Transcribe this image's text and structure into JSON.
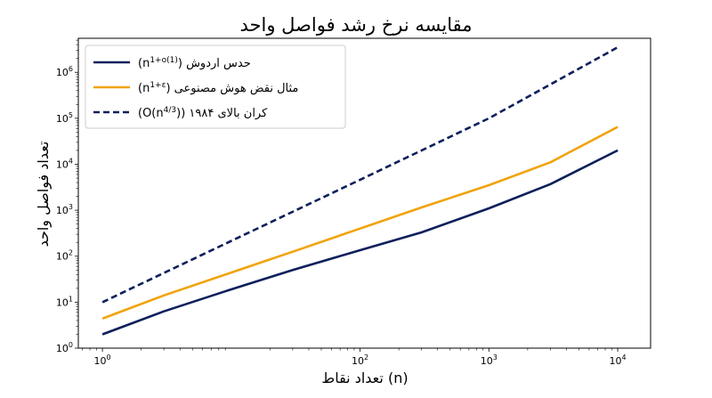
{
  "chart_data": {
    "type": "line",
    "title": "مقایسه نرخ رشد فواصل واحد",
    "xlabel": "تعداد نقاط (n)",
    "ylabel": "تعداد فواصل واحد",
    "xscale": "log",
    "yscale": "log",
    "xlim": [
      0.65,
      18000
    ],
    "ylim": [
      1,
      5500000
    ],
    "x_ticks": [
      {
        "value": 1,
        "label": "10",
        "exp": "0"
      },
      {
        "value": 100,
        "label": "10",
        "exp": "2"
      },
      {
        "value": 1000,
        "label": "10",
        "exp": "3"
      },
      {
        "value": 10000,
        "label": "10",
        "exp": "4"
      }
    ],
    "y_ticks": [
      {
        "value": 1,
        "label": "10",
        "exp": "0"
      },
      {
        "value": 10,
        "label": "10",
        "exp": "1"
      },
      {
        "value": 100,
        "label": "10",
        "exp": "2"
      },
      {
        "value": 1000,
        "label": "10",
        "exp": "3"
      },
      {
        "value": 10000,
        "label": "10",
        "exp": "4"
      },
      {
        "value": 100000,
        "label": "10",
        "exp": "5"
      },
      {
        "value": 1000000,
        "label": "10",
        "exp": "6"
      }
    ],
    "grid": false,
    "legend_position": "top-left",
    "series": [
      {
        "name": "حدس اردوش (n",
        "name_sup": "1+o(1)",
        "name_end": ")",
        "color": "#0d1f5c",
        "style": "solid",
        "x": [
          1,
          3,
          10,
          30,
          100,
          300,
          1000,
          3000,
          10000
        ],
        "y": [
          2,
          6.3,
          19,
          50,
          135,
          330,
          1100,
          3700,
          20000
        ]
      },
      {
        "name": "مثال نقض هوش مصنوعی (n",
        "name_sup": "1+ε",
        "name_end": ")",
        "color": "#f0a30a",
        "style": "solid",
        "x": [
          1,
          3,
          10,
          30,
          100,
          300,
          1000,
          3000,
          10000
        ],
        "y": [
          4.4,
          14,
          44,
          125,
          400,
          1150,
          3500,
          11000,
          65000
        ]
      },
      {
        "name": "کران بالای ۱۹۸۴ (O(n",
        "name_sup": "4/3",
        "name_end": "))",
        "color": "#0d1f5c",
        "style": "dashed",
        "x": [
          1,
          10,
          100,
          1000,
          10000
        ],
        "y": [
          10,
          215,
          4600,
          100000,
          3500000
        ]
      }
    ]
  }
}
